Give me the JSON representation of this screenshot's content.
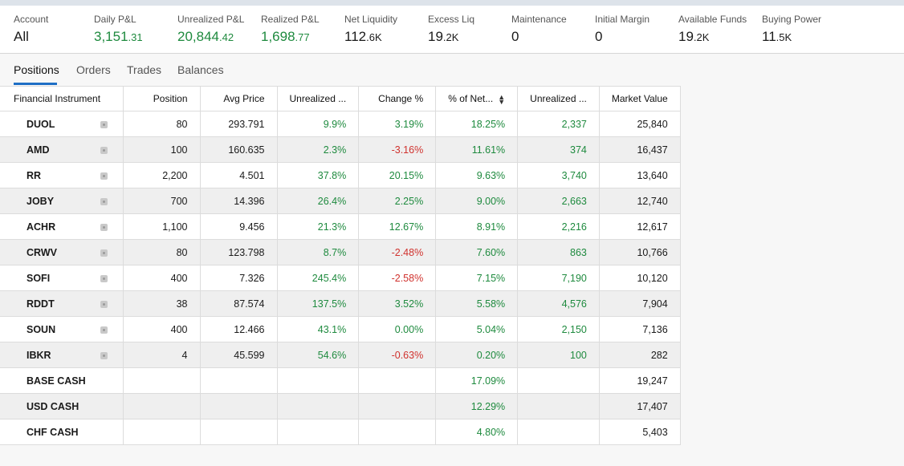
{
  "summary": {
    "account": {
      "label": "Account",
      "value": "All"
    },
    "daily_pnl": {
      "label": "Daily P&L",
      "main": "3,151",
      "decimal": ".31"
    },
    "unrealized_pnl": {
      "label": "Unrealized P&L",
      "main": "20,844",
      "decimal": ".42"
    },
    "realized_pnl": {
      "label": "Realized P&L",
      "main": "1,698",
      "decimal": ".77"
    },
    "net_liquidity": {
      "label": "Net Liquidity",
      "main": "112",
      "unit": ".6K"
    },
    "excess_liq": {
      "label": "Excess Liq",
      "main": "19",
      "unit": ".2K"
    },
    "maintenance": {
      "label": "Maintenance",
      "value": "0"
    },
    "initial_margin": {
      "label": "Initial Margin",
      "value": "0"
    },
    "available_funds": {
      "label": "Available Funds",
      "main": "19",
      "unit": ".2K"
    },
    "buying_power": {
      "label": "Buying Power",
      "main": "11",
      "unit": ".5K"
    }
  },
  "tabs": [
    "Positions",
    "Orders",
    "Trades",
    "Balances"
  ],
  "table": {
    "headers": [
      "Financial Instrument",
      "Position",
      "Avg Price",
      "Unrealized ...",
      "Change %",
      "% of Net...",
      "Unrealized ...",
      "Market Value"
    ],
    "rows": [
      {
        "sym": "DUOL",
        "pos": "80",
        "avg": "293.791",
        "upct": "9.9%",
        "chg": "3.19%",
        "net": "18.25%",
        "uval": "2,337",
        "mv": "25,840"
      },
      {
        "sym": "AMD",
        "pos": "100",
        "avg": "160.635",
        "upct": "2.3%",
        "chg": "-3.16%",
        "net": "11.61%",
        "uval": "374",
        "mv": "16,437"
      },
      {
        "sym": "RR",
        "pos": "2,200",
        "avg": "4.501",
        "upct": "37.8%",
        "chg": "20.15%",
        "net": "9.63%",
        "uval": "3,740",
        "mv": "13,640"
      },
      {
        "sym": "JOBY",
        "pos": "700",
        "avg": "14.396",
        "upct": "26.4%",
        "chg": "2.25%",
        "net": "9.00%",
        "uval": "2,663",
        "mv": "12,740"
      },
      {
        "sym": "ACHR",
        "pos": "1,100",
        "avg": "9.456",
        "upct": "21.3%",
        "chg": "12.67%",
        "net": "8.91%",
        "uval": "2,216",
        "mv": "12,617"
      },
      {
        "sym": "CRWV",
        "pos": "80",
        "avg": "123.798",
        "upct": "8.7%",
        "chg": "-2.48%",
        "net": "7.60%",
        "uval": "863",
        "mv": "10,766"
      },
      {
        "sym": "SOFI",
        "pos": "400",
        "avg": "7.326",
        "upct": "245.4%",
        "chg": "-2.58%",
        "net": "7.15%",
        "uval": "7,190",
        "mv": "10,120"
      },
      {
        "sym": "RDDT",
        "pos": "38",
        "avg": "87.574",
        "upct": "137.5%",
        "chg": "3.52%",
        "net": "5.58%",
        "uval": "4,576",
        "mv": "7,904"
      },
      {
        "sym": "SOUN",
        "pos": "400",
        "avg": "12.466",
        "upct": "43.1%",
        "chg": "0.00%",
        "net": "5.04%",
        "uval": "2,150",
        "mv": "7,136"
      },
      {
        "sym": "IBKR",
        "pos": "4",
        "avg": "45.599",
        "upct": "54.6%",
        "chg": "-0.63%",
        "net": "0.20%",
        "uval": "100",
        "mv": "282"
      }
    ],
    "cash_rows": [
      {
        "sym": "BASE CASH",
        "net": "17.09%",
        "mv": "19,247"
      },
      {
        "sym": "USD CASH",
        "net": "12.29%",
        "mv": "17,407"
      },
      {
        "sym": "CHF CASH",
        "net": "4.80%",
        "mv": "5,403"
      }
    ]
  },
  "colors": {
    "positive": "#1e8a3e",
    "negative": "#d0312d",
    "accent": "#1f6fc5"
  }
}
